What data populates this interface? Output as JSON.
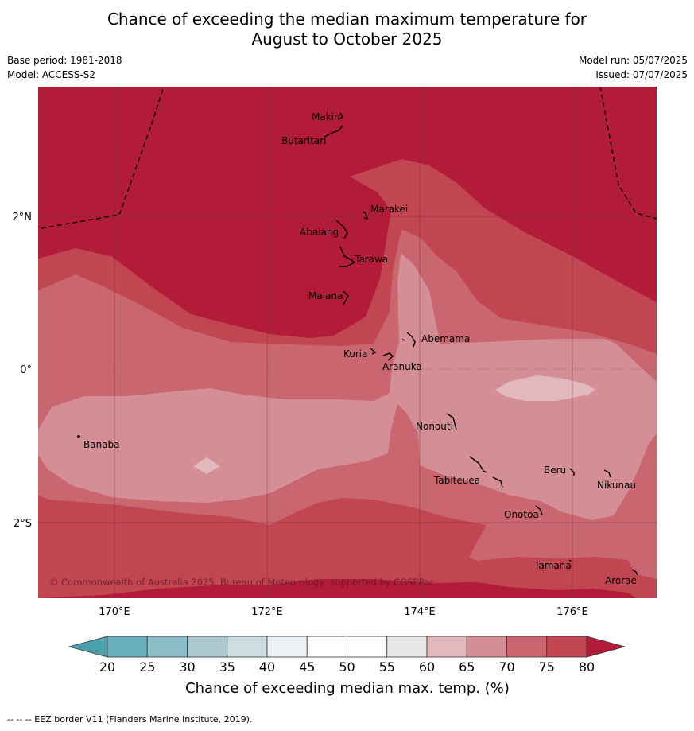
{
  "header": {
    "title_line1": "Chance of exceeding the median maximum temperature for",
    "title_line2": "August to October 2025",
    "base_period": "Base period: 1981-2018",
    "model": "Model: ACCESS-S2",
    "model_run": "Model run: 05/07/2025",
    "issued": "Issued: 07/07/2025"
  },
  "map": {
    "lat_labels": [
      "2°N",
      "0°",
      "2°S"
    ],
    "lon_labels": [
      "170°E",
      "172°E",
      "174°E",
      "176°E"
    ],
    "places": [
      "Makin",
      "Butaritari",
      "Marakei",
      "Abaiang",
      "Tarawa",
      "Maiana",
      "Abemama",
      "Kuria",
      "Aranuka",
      "Banaba",
      "Nonouti",
      "Beru",
      "Nikunau",
      "Tabiteuea",
      "Onotoa",
      "Tamana",
      "Arorae"
    ],
    "copyright": "© Commonwealth of Australia 2025, Bureau of Meteorology, supported by COSPPac"
  },
  "colorbar": {
    "ticks": [
      "20",
      "25",
      "30",
      "35",
      "40",
      "45",
      "50",
      "55",
      "60",
      "65",
      "70",
      "75",
      "80"
    ],
    "label": "Chance of exceeding median max. temp. (%)",
    "colors": [
      "#4aa0ad",
      "#6aafbe",
      "#8cbcc7",
      "#abc9cf",
      "#cddde0",
      "#ecf1f3",
      "#ffffff",
      "#ffffff",
      "#e9e6e7",
      "#e2b8bf",
      "#d58e96",
      "#c9666f",
      "#c24552",
      "#b21c38"
    ]
  },
  "footnote": "--  --  -- EEZ border V11 (Flanders Marine Institute, 2019)."
}
